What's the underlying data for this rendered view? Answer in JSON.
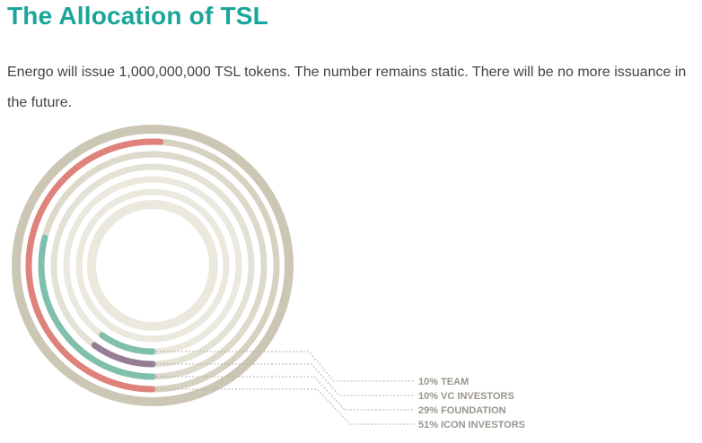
{
  "header": {
    "title": "The Allocation of TSL",
    "intro": "Energo will issue 1,000,000,000 TSL tokens. The number remains static. There will be no more issuance in the future."
  },
  "chart_data": {
    "type": "radial-bar",
    "title": "",
    "categories": [
      "TEAM",
      "VC INVESTORS",
      "FOUNDATION",
      "ICON INVESTORS"
    ],
    "series": [
      {
        "value": 10,
        "label": "10% TEAM",
        "color": "#7fbfac"
      },
      {
        "value": 10,
        "label": "10% VC INVESTORS",
        "color": "#957d93"
      },
      {
        "value": 29,
        "label": "29% FOUNDATION",
        "color": "#7fbfac"
      },
      {
        "value": 51,
        "label": "51% ICON INVESTORS",
        "color": "#e0827c"
      }
    ],
    "unit": "%",
    "track_colors": [
      "#ccc7b5",
      "#d6d2c2",
      "#ddd9cb",
      "#e4e1d5",
      "#ebe8de"
    ]
  }
}
